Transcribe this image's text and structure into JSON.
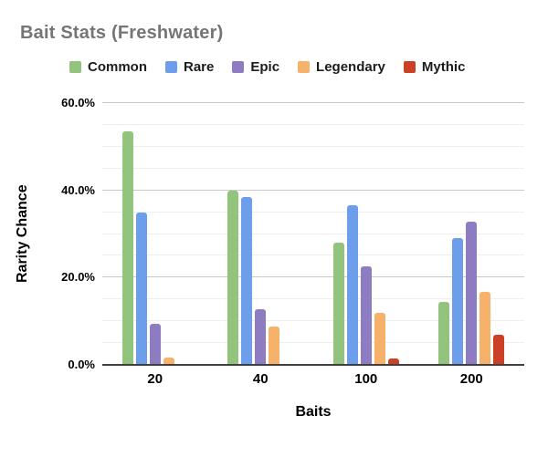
{
  "title": "Bait Stats (Freshwater)",
  "chart_data": {
    "type": "bar",
    "title": "Bait Stats (Freshwater)",
    "xlabel": "Baits",
    "ylabel": "Rarity Chance",
    "categories": [
      "20",
      "40",
      "100",
      "200"
    ],
    "series": [
      {
        "name": "Common",
        "color": "#93C47D",
        "values": [
          53.5,
          40.0,
          28.0,
          14.5
        ]
      },
      {
        "name": "Rare",
        "color": "#6D9EEB",
        "values": [
          35.0,
          38.5,
          36.5,
          29.0
        ]
      },
      {
        "name": "Epic",
        "color": "#8E7CC3",
        "values": [
          9.5,
          12.75,
          22.5,
          32.75
        ]
      },
      {
        "name": "Legendary",
        "color": "#F6B26B",
        "values": [
          1.75,
          8.75,
          12.0,
          16.75
        ]
      },
      {
        "name": "Mythic",
        "color": "#CC4125",
        "values": [
          0,
          0,
          1.5,
          7.0
        ]
      }
    ],
    "ylim": [
      0,
      60
    ],
    "yticks": [
      {
        "value": 0,
        "label": "0.0%"
      },
      {
        "value": 20,
        "label": "20.0%"
      },
      {
        "value": 40,
        "label": "40.0%"
      },
      {
        "value": 60,
        "label": "60.0%"
      }
    ],
    "minor_grid_step": 5,
    "grid": true,
    "legend_position": "top",
    "colors": {
      "title_text": "#757575",
      "axis_text": "#000000",
      "major_gridline": "#c9c9c9",
      "minor_gridline": "#efefef",
      "axis_line": "#3f3f3f",
      "background": "#ffffff"
    }
  }
}
